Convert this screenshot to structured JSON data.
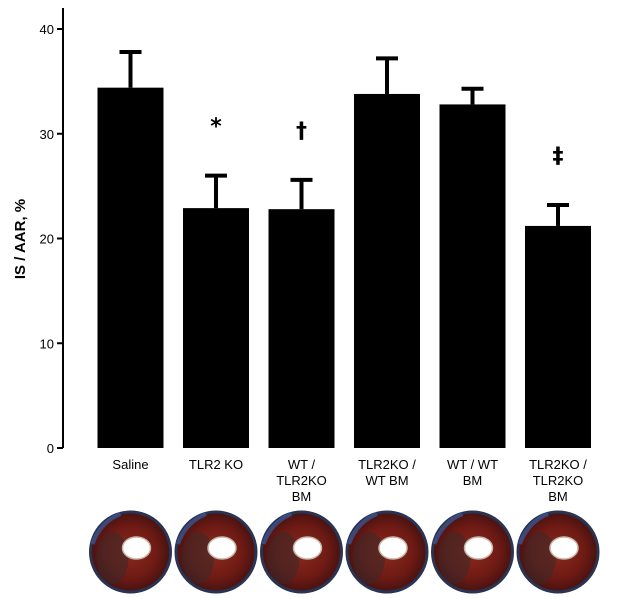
{
  "chart_data": {
    "type": "bar",
    "title": "",
    "xlabel": "",
    "ylabel": "IS / AAR, %",
    "ylim": [
      0,
      40
    ],
    "yticks": [
      "0",
      "10",
      "20",
      "30",
      "40"
    ],
    "grid": false,
    "categories": [
      [
        "Saline"
      ],
      [
        "TLR2 KO"
      ],
      [
        "WT /",
        "TLR2KO",
        "BM"
      ],
      [
        "TLR2KO /",
        "WT BM"
      ],
      [
        "WT / WT",
        "BM"
      ],
      [
        "TLR2KO /",
        "TLR2KO",
        "BM"
      ]
    ],
    "values": [
      34.4,
      22.9,
      22.8,
      33.8,
      32.8,
      21.2
    ],
    "error_upper": [
      37.8,
      26.0,
      25.6,
      37.2,
      34.3,
      23.2
    ],
    "annotations": [
      "",
      "*",
      "†",
      "",
      "",
      "‡"
    ],
    "bar_color": "#000000"
  },
  "heart_sections": [
    {
      "name": "saline-heart-section-image"
    },
    {
      "name": "tlr2ko-heart-section-image"
    },
    {
      "name": "wt-tlr2ko-bm-heart-section-image"
    },
    {
      "name": "tlr2ko-wt-bm-heart-section-image"
    },
    {
      "name": "wt-wt-bm-heart-section-image"
    },
    {
      "name": "tlr2ko-tlr2ko-bm-heart-section-image"
    }
  ]
}
